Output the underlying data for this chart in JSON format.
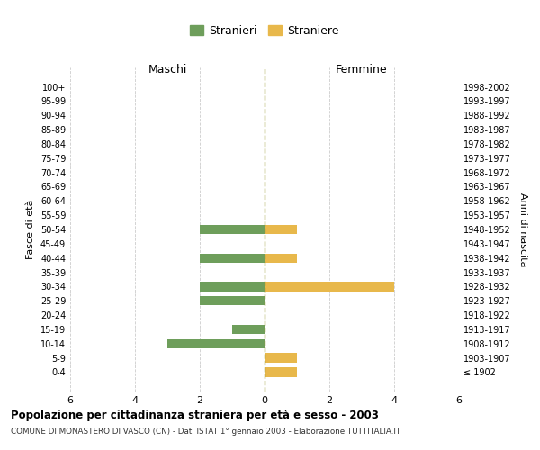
{
  "age_groups": [
    "100+",
    "95-99",
    "90-94",
    "85-89",
    "80-84",
    "75-79",
    "70-74",
    "65-69",
    "60-64",
    "55-59",
    "50-54",
    "45-49",
    "40-44",
    "35-39",
    "30-34",
    "25-29",
    "20-24",
    "15-19",
    "10-14",
    "5-9",
    "0-4"
  ],
  "birth_years": [
    "≤ 1902",
    "1903-1907",
    "1908-1912",
    "1913-1917",
    "1918-1922",
    "1923-1927",
    "1928-1932",
    "1933-1937",
    "1938-1942",
    "1943-1947",
    "1948-1952",
    "1953-1957",
    "1958-1962",
    "1963-1967",
    "1968-1972",
    "1973-1977",
    "1978-1982",
    "1983-1987",
    "1988-1992",
    "1993-1997",
    "1998-2002"
  ],
  "males": [
    0,
    0,
    0,
    0,
    0,
    0,
    0,
    0,
    0,
    0,
    2,
    0,
    2,
    0,
    2,
    2,
    0,
    1,
    3,
    0,
    0
  ],
  "females": [
    0,
    0,
    0,
    0,
    0,
    0,
    0,
    0,
    0,
    0,
    1,
    0,
    1,
    0,
    4,
    0,
    0,
    0,
    0,
    1,
    1
  ],
  "male_color": "#6e9e5b",
  "female_color": "#e8b84b",
  "legend_male": "Stranieri",
  "legend_female": "Straniere",
  "title1": "Popolazione per cittadinanza straniera per età e sesso - 2003",
  "title2": "COMUNE DI MONASTERO DI VASCO (CN) - Dati ISTAT 1° gennaio 2003 - Elaborazione TUTTITALIA.IT",
  "label_maschi": "Maschi",
  "label_femmine": "Femmine",
  "ylabel_left": "Fasce di età",
  "ylabel_right": "Anni di nascita",
  "xlim": 6,
  "xticks": [
    -6,
    -4,
    -2,
    0,
    2,
    4,
    6
  ],
  "xtick_labels": [
    "6",
    "4",
    "2",
    "0",
    "2",
    "4",
    "6"
  ],
  "background_color": "#ffffff",
  "grid_color": "#cccccc",
  "zeroline_color": "#999933"
}
